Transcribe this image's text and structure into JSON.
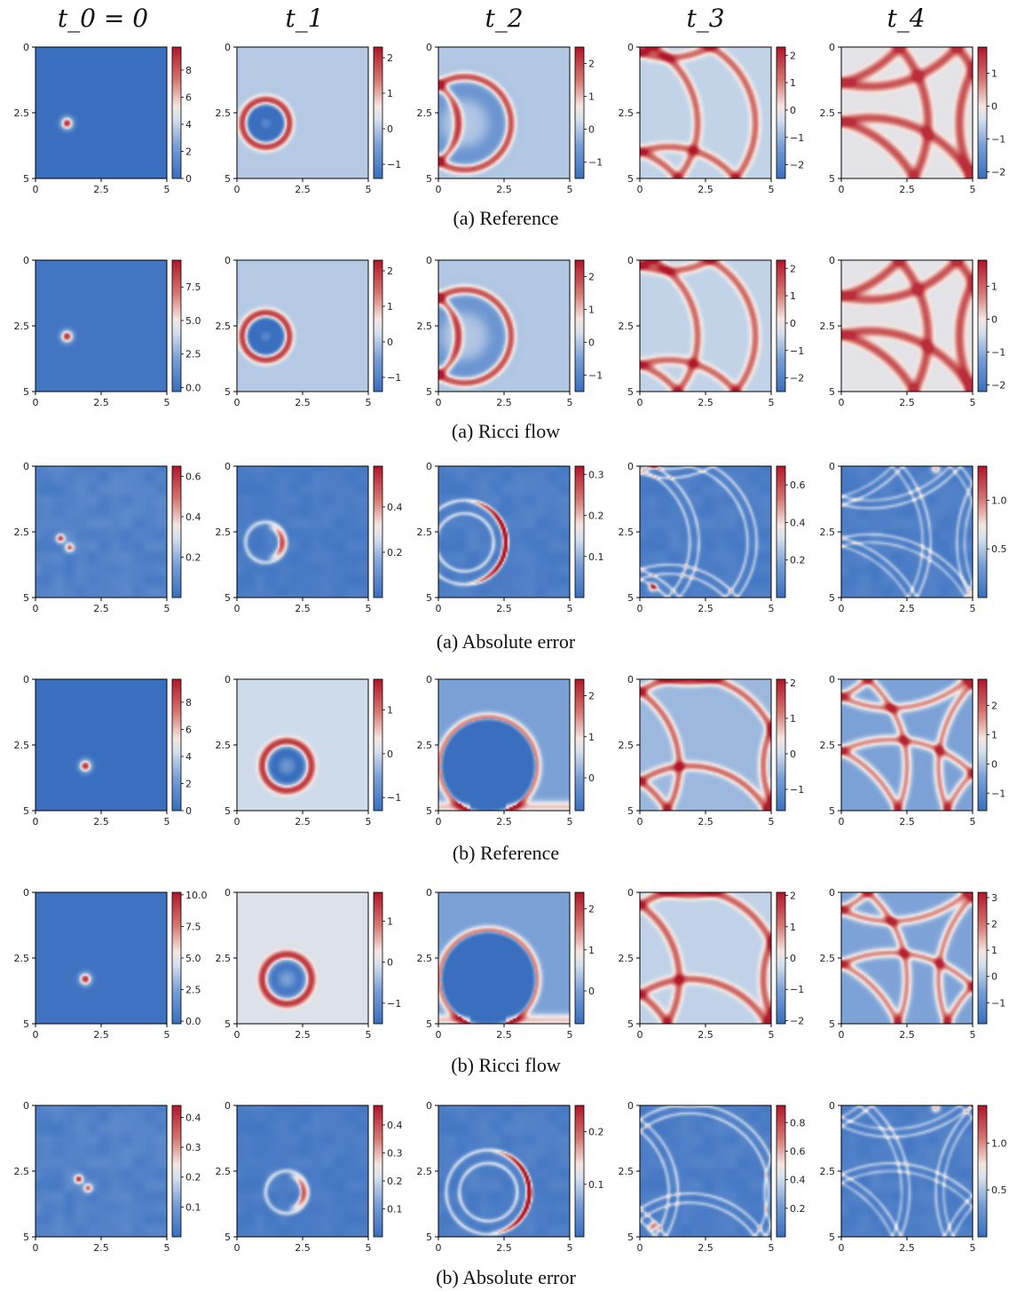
{
  "columns": [
    "t_0 = 0",
    "t_1",
    "t_2",
    "t_3",
    "t_4"
  ],
  "captions": [
    "(a) Reference",
    "(a) Ricci flow",
    "(a) Absolute error",
    "(b) Reference",
    "(b) Ricci flow",
    "(b) Absolute error"
  ],
  "colors": {
    "low": "#3a6fbf",
    "mid": "#f4f4f4",
    "high": "#b2182b",
    "frame": "#000000"
  },
  "chart_data": {
    "type": "heatmap",
    "x_ticks": [
      "0",
      "2.5",
      "5"
    ],
    "y_ticks": [
      "0",
      "2.5",
      "5"
    ],
    "xlim": [
      0,
      5
    ],
    "ylim": [
      0,
      5
    ],
    "rows": [
      {
        "caption": "(a) Reference",
        "panels": [
          {
            "type": "pulse",
            "cx": 1.2,
            "cy": 2.9,
            "r": 0.2,
            "min": 0,
            "max": 9.7,
            "cbar_ticks": [
              0,
              2,
              4,
              6,
              8
            ],
            "cbar_labels": [
              "0",
              "2",
              "4",
              "6",
              "8"
            ]
          },
          {
            "type": "ring",
            "cx": 1.1,
            "cy": 2.9,
            "r": 1.1,
            "min": -1.4,
            "max": 2.3,
            "cbar_ticks": [
              -1,
              0,
              1,
              2
            ],
            "cbar_labels": [
              "−1",
              "0",
              "1",
              "2"
            ]
          },
          {
            "type": "crescent",
            "cx": 1.0,
            "cy": 2.9,
            "r": 2.2,
            "min": -1.5,
            "max": 2.5,
            "cbar_ticks": [
              -1,
              0,
              1,
              2
            ],
            "cbar_labels": [
              "−1",
              "0",
              "1",
              "2"
            ]
          },
          {
            "type": "arcs3",
            "min": -2.5,
            "max": 2.3,
            "cbar_ticks": [
              -2,
              -1,
              0,
              1,
              2
            ],
            "cbar_labels": [
              "−2",
              "−1",
              "0",
              "1",
              "2"
            ]
          },
          {
            "type": "grid4",
            "min": -2.2,
            "max": 1.8,
            "cbar_ticks": [
              -2,
              -1,
              0,
              1
            ],
            "cbar_labels": [
              "−2",
              "−1",
              "0",
              "1"
            ]
          }
        ]
      },
      {
        "caption": "(a) Ricci flow",
        "panels": [
          {
            "type": "pulse",
            "cx": 1.2,
            "cy": 2.9,
            "r": 0.2,
            "min": -0.3,
            "max": 9.5,
            "cbar_ticks": [
              0,
              2.5,
              5,
              7.5
            ],
            "cbar_labels": [
              "0.0",
              "2.5",
              "5.0",
              "7.5"
            ]
          },
          {
            "type": "ring",
            "cx": 1.1,
            "cy": 2.9,
            "r": 1.1,
            "min": -1.4,
            "max": 2.3,
            "cbar_ticks": [
              -1,
              0,
              1,
              2
            ],
            "cbar_labels": [
              "−1",
              "0",
              "1",
              "2"
            ]
          },
          {
            "type": "crescent",
            "cx": 1.0,
            "cy": 2.9,
            "r": 2.2,
            "min": -1.5,
            "max": 2.5,
            "cbar_ticks": [
              -1,
              0,
              1,
              2
            ],
            "cbar_labels": [
              "−1",
              "0",
              "1",
              "2"
            ]
          },
          {
            "type": "arcs3",
            "min": -2.5,
            "max": 2.3,
            "cbar_ticks": [
              -2,
              -1,
              0,
              1,
              2
            ],
            "cbar_labels": [
              "−2",
              "−1",
              "0",
              "1",
              "2"
            ]
          },
          {
            "type": "grid4",
            "min": -2.2,
            "max": 1.8,
            "cbar_ticks": [
              -2,
              -1,
              0,
              1
            ],
            "cbar_labels": [
              "−2",
              "−1",
              "0",
              "1"
            ]
          }
        ]
      },
      {
        "caption": "(a) Absolute error",
        "panels": [
          {
            "type": "err_pulse",
            "cx": 1.1,
            "cy": 2.95,
            "min": 0,
            "max": 0.65,
            "cbar_ticks": [
              0.2,
              0.4,
              0.6
            ],
            "cbar_labels": [
              "0.2",
              "0.4",
              "0.6"
            ]
          },
          {
            "type": "err_ring",
            "cx": 1.1,
            "cy": 2.9,
            "r": 1.1,
            "min": 0,
            "max": 0.58,
            "cbar_ticks": [
              0.2,
              0.4
            ],
            "cbar_labels": [
              "0.2",
              "0.4"
            ]
          },
          {
            "type": "err_crescent",
            "cx": 1.0,
            "cy": 2.9,
            "r": 2.2,
            "min": 0,
            "max": 0.32,
            "cbar_ticks": [
              0.1,
              0.2,
              0.3
            ],
            "cbar_labels": [
              "0.1",
              "0.2",
              "0.3"
            ]
          },
          {
            "type": "err_arcs3",
            "min": 0,
            "max": 0.7,
            "cbar_ticks": [
              0.2,
              0.4,
              0.6
            ],
            "cbar_labels": [
              "0.2",
              "0.4",
              "0.6"
            ]
          },
          {
            "type": "err_grid4",
            "min": 0,
            "max": 1.35,
            "cbar_ticks": [
              0.5,
              1.0
            ],
            "cbar_labels": [
              "0.5",
              "1.0"
            ]
          }
        ]
      },
      {
        "caption": "(b) Reference",
        "panels": [
          {
            "type": "pulse",
            "cx": 1.9,
            "cy": 3.3,
            "r": 0.2,
            "min": 0,
            "max": 9.7,
            "cbar_ticks": [
              0,
              2,
              4,
              6,
              8
            ],
            "cbar_labels": [
              "0",
              "2",
              "4",
              "6",
              "8"
            ]
          },
          {
            "type": "ring",
            "cx": 1.9,
            "cy": 3.3,
            "r": 1.15,
            "min": -1.3,
            "max": 1.7,
            "cbar_ticks": [
              -1,
              0,
              1
            ],
            "cbar_labels": [
              "−1",
              "0",
              "1"
            ]
          },
          {
            "type": "circle_b",
            "cx": 1.9,
            "cy": 3.3,
            "r": 2.2,
            "min": -0.8,
            "max": 2.4,
            "cbar_ticks": [
              0,
              1,
              2
            ],
            "cbar_labels": [
              "0",
              "1",
              "2"
            ]
          },
          {
            "type": "arcs3b",
            "min": -1.6,
            "max": 2.1,
            "cbar_ticks": [
              -1,
              0,
              1,
              2
            ],
            "cbar_labels": [
              "−1",
              "0",
              "1",
              "2"
            ]
          },
          {
            "type": "grid4b",
            "min": -1.6,
            "max": 2.9,
            "cbar_ticks": [
              -1,
              0,
              1,
              2
            ],
            "cbar_labels": [
              "−1",
              "0",
              "1",
              "2"
            ]
          }
        ]
      },
      {
        "caption": "(b) Ricci flow",
        "panels": [
          {
            "type": "pulse",
            "cx": 1.9,
            "cy": 3.3,
            "r": 0.2,
            "min": -0.2,
            "max": 10.2,
            "cbar_ticks": [
              0,
              2.5,
              5,
              7.5,
              10
            ],
            "cbar_labels": [
              "0.0",
              "2.5",
              "5.0",
              "7.5",
              "10.0"
            ]
          },
          {
            "type": "ring",
            "cx": 1.9,
            "cy": 3.3,
            "r": 1.15,
            "min": -1.5,
            "max": 1.7,
            "cbar_ticks": [
              -1,
              0,
              1
            ],
            "cbar_labels": [
              "−1",
              "0",
              "1"
            ]
          },
          {
            "type": "circle_b",
            "cx": 1.9,
            "cy": 3.3,
            "r": 2.2,
            "min": -0.8,
            "max": 2.4,
            "cbar_ticks": [
              0,
              1,
              2
            ],
            "cbar_labels": [
              "0",
              "1",
              "2"
            ]
          },
          {
            "type": "arcs3b",
            "min": -2.1,
            "max": 2.1,
            "cbar_ticks": [
              -2,
              -1,
              0,
              1,
              2
            ],
            "cbar_labels": [
              "−2",
              "−1",
              "0",
              "1",
              "2"
            ]
          },
          {
            "type": "grid4b",
            "min": -1.8,
            "max": 3.2,
            "cbar_ticks": [
              -1,
              0,
              1,
              2,
              3
            ],
            "cbar_labels": [
              "−1",
              "0",
              "1",
              "2",
              "3"
            ]
          }
        ]
      },
      {
        "caption": "(b) Absolute error",
        "panels": [
          {
            "type": "err_pulse",
            "cx": 1.8,
            "cy": 3.0,
            "min": 0,
            "max": 0.44,
            "cbar_ticks": [
              0.1,
              0.2,
              0.3,
              0.4
            ],
            "cbar_labels": [
              "0.1",
              "0.2",
              "0.3",
              "0.4"
            ]
          },
          {
            "type": "err_ring",
            "cx": 1.9,
            "cy": 3.3,
            "r": 1.15,
            "min": 0,
            "max": 0.47,
            "cbar_ticks": [
              0.1,
              0.2,
              0.3,
              0.4
            ],
            "cbar_labels": [
              "0.1",
              "0.2",
              "0.3",
              "0.4"
            ]
          },
          {
            "type": "err_circle_b",
            "cx": 1.9,
            "cy": 3.3,
            "r": 2.2,
            "min": 0,
            "max": 0.25,
            "cbar_ticks": [
              0.1,
              0.2
            ],
            "cbar_labels": [
              "0.1",
              "0.2"
            ]
          },
          {
            "type": "err_arcs3b",
            "min": 0,
            "max": 0.92,
            "cbar_ticks": [
              0.2,
              0.4,
              0.6,
              0.8
            ],
            "cbar_labels": [
              "0.2",
              "0.4",
              "0.6",
              "0.8"
            ]
          },
          {
            "type": "err_grid4b",
            "min": 0,
            "max": 1.4,
            "cbar_ticks": [
              0.5,
              1.0
            ],
            "cbar_labels": [
              "0.5",
              "1.0"
            ]
          }
        ]
      }
    ]
  }
}
